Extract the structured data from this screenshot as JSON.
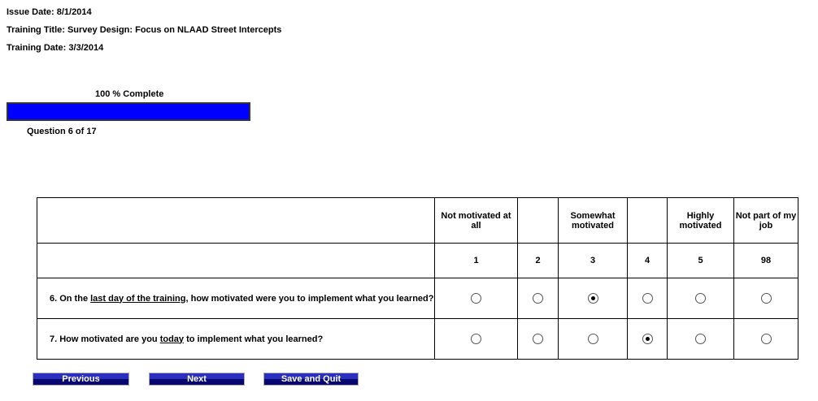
{
  "header": {
    "issue_date": "Issue Date: 8/1/2014",
    "training_title": "Training Title:  Survey Design: Focus on NLAAD Street Intercepts",
    "training_date": "Training Date: 3/3/2014"
  },
  "progress": {
    "label": "100 % Complete",
    "percent": 100,
    "question": "Question 6 of 17",
    "color": "#0000ff"
  },
  "table": {
    "headers": [
      "Not motivated at all",
      "",
      "Somewhat motivated",
      "",
      "Highly motivated",
      "Not part of my job"
    ],
    "scale": [
      "1",
      "2",
      "3",
      "4",
      "5",
      "98"
    ],
    "questions": [
      {
        "pre": "6. On the ",
        "u": "last day of the training",
        "post": ", how motivated were you to implement what you learned?",
        "selected": "3"
      },
      {
        "pre": "7. How motivated are you ",
        "u": "today",
        "post": " to implement what you learned?",
        "selected": "4"
      }
    ]
  },
  "buttons": {
    "previous": "Previous",
    "next": "Next",
    "save_quit": "Save and Quit"
  }
}
